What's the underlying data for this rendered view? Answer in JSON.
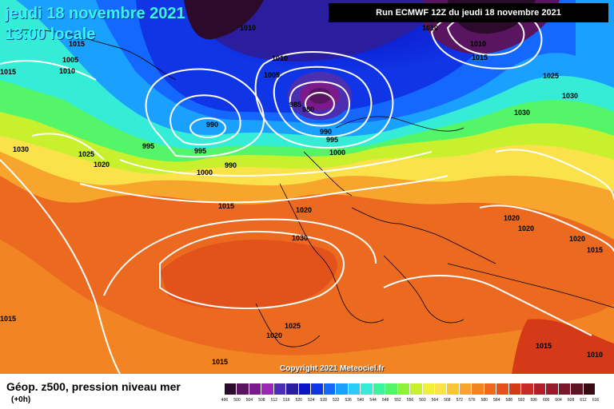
{
  "header": {
    "date": "jeudi 18 novembre 2021",
    "time": "13:00 locale"
  },
  "run_info": "Run ECMWF 12Z du jeudi 18 novembre 2021",
  "copyright": "Copyright 2021 Meteociel.fr",
  "footer": {
    "field_title": "Géop. z500, pression niveau mer",
    "lead_time": "(+0h)"
  },
  "scale": {
    "values": [
      "496",
      "500",
      "504",
      "508",
      "512",
      "516",
      "520",
      "524",
      "528",
      "532",
      "536",
      "540",
      "544",
      "548",
      "552",
      "556",
      "560",
      "564",
      "568",
      "572",
      "576",
      "580",
      "584",
      "588",
      "592",
      "596",
      "600",
      "604",
      "608",
      "612",
      "616"
    ],
    "colors": [
      "#2b0a2b",
      "#5a1560",
      "#7a1a8c",
      "#9a28b4",
      "#4b2fb0",
      "#2a1e9e",
      "#0b14c8",
      "#1035e6",
      "#1468ff",
      "#1aa0ff",
      "#29cdf7",
      "#35ecd6",
      "#3cf3a0",
      "#55f56a",
      "#8ef23a",
      "#c8f02c",
      "#eef03a",
      "#fbe24a",
      "#fbc53a",
      "#f7a52c",
      "#f28424",
      "#ec6a20",
      "#e4521c",
      "#d43a18",
      "#c82a28",
      "#b0202c",
      "#961c2c",
      "#7a182a",
      "#5e1424",
      "#3a0a14"
    ]
  },
  "legend_colors": {
    "text_highlight": "#3cf0f5",
    "isobar": "#ffffff"
  },
  "isobars": {
    "labels": [
      "1010",
      "1015",
      "1005",
      "1010",
      "1010",
      "995",
      "990",
      "995",
      "1000",
      "990",
      "1025",
      "1020",
      "1030",
      "1015",
      "1005",
      "1010",
      "985",
      "980",
      "990",
      "995",
      "1000",
      "1020",
      "1030",
      "1015",
      "1025",
      "1020",
      "1015",
      "1025",
      "1030",
      "1030",
      "1020",
      "1020",
      "1020",
      "1015",
      "1010",
      "1015",
      "1015",
      "1010",
      "1015"
    ],
    "centers": [
      "990",
      "980",
      "1010",
      "990"
    ]
  }
}
